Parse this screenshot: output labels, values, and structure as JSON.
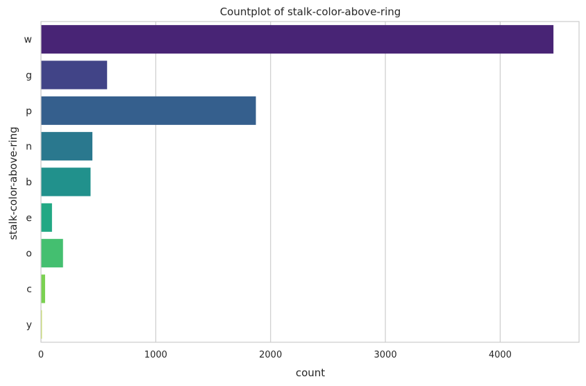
{
  "chart_data": {
    "type": "bar",
    "orientation": "horizontal",
    "title": "Countplot of stalk-color-above-ring",
    "xlabel": "count",
    "ylabel": "stalk-color-above-ring",
    "categories": [
      "w",
      "g",
      "p",
      "n",
      "b",
      "e",
      "o",
      "c",
      "y"
    ],
    "values": [
      4464,
      576,
      1872,
      448,
      432,
      96,
      192,
      36,
      8
    ],
    "colors": [
      "#482475",
      "#414487",
      "#355f8d",
      "#2a788e",
      "#21918c",
      "#22a884",
      "#44bf70",
      "#7ad151",
      "#bddf26"
    ],
    "xlim": [
      0,
      4687
    ],
    "xticks": [
      0,
      1000,
      2000,
      3000,
      4000
    ],
    "grid": true
  }
}
